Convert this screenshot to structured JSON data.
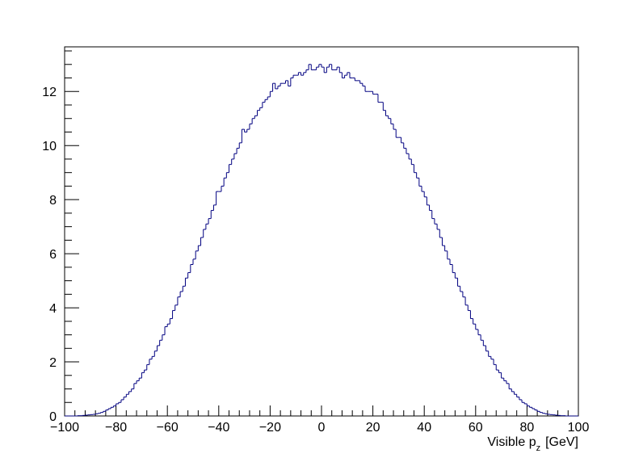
{
  "chart_data": {
    "type": "histogram",
    "xlabel": {
      "main": "Visible p",
      "subscript": "z",
      "suffix": "[GeV]"
    },
    "color": "#000080",
    "bins": [
      -100,
      -99,
      -98,
      -97,
      -96,
      -95,
      -94,
      -93,
      -92,
      -91,
      -90,
      -89,
      -88,
      -87,
      -86,
      -85,
      -84,
      -83,
      -82,
      -81,
      -80,
      -79,
      -78,
      -77,
      -76,
      -75,
      -74,
      -73,
      -72,
      -71,
      -70,
      -69,
      -68,
      -67,
      -66,
      -65,
      -64,
      -63,
      -62,
      -61,
      -60,
      -59,
      -58,
      -57,
      -56,
      -55,
      -54,
      -53,
      -52,
      -51,
      -50,
      -49,
      -48,
      -47,
      -46,
      -45,
      -44,
      -43,
      -42,
      -41,
      -40,
      -39,
      -38,
      -37,
      -36,
      -35,
      -34,
      -33,
      -32,
      -31,
      -30,
      -29,
      -28,
      -27,
      -26,
      -25,
      -24,
      -23,
      -22,
      -21,
      -20,
      -19,
      -18,
      -17,
      -16,
      -15,
      -14,
      -13,
      -12,
      -11,
      -10,
      -9,
      -8,
      -7,
      -6,
      -5,
      -4,
      -3,
      -2,
      -1,
      0,
      1,
      2,
      3,
      4,
      5,
      6,
      7,
      8,
      9,
      10,
      11,
      12,
      13,
      14,
      15,
      16,
      17,
      18,
      19,
      20,
      21,
      22,
      23,
      24,
      25,
      26,
      27,
      28,
      29,
      30,
      31,
      32,
      33,
      34,
      35,
      36,
      37,
      38,
      39,
      40,
      41,
      42,
      43,
      44,
      45,
      46,
      47,
      48,
      49,
      50,
      51,
      52,
      53,
      54,
      55,
      56,
      57,
      58,
      59,
      60,
      61,
      62,
      63,
      64,
      65,
      66,
      67,
      68,
      69,
      70,
      71,
      72,
      73,
      74,
      75,
      76,
      77,
      78,
      79,
      80,
      81,
      82,
      83,
      84,
      85,
      86,
      87,
      88,
      89,
      90,
      91,
      92,
      93,
      94,
      95,
      96,
      97,
      98,
      99,
      100
    ],
    "values": [
      0,
      0,
      0,
      0,
      0,
      0.01,
      0.01,
      0.02,
      0.03,
      0.04,
      0.05,
      0.06,
      0.08,
      0.1,
      0.13,
      0.17,
      0.22,
      0.27,
      0.32,
      0.37,
      0.45,
      0.5,
      0.6,
      0.7,
      0.8,
      0.9,
      1.0,
      1.2,
      1.3,
      1.4,
      1.6,
      1.7,
      1.9,
      2.1,
      2.2,
      2.4,
      2.6,
      2.8,
      3.0,
      3.3,
      3.4,
      3.6,
      3.9,
      4.1,
      4.4,
      4.6,
      4.8,
      5.1,
      5.3,
      5.6,
      5.8,
      6.1,
      6.3,
      6.6,
      6.9,
      7.1,
      7.3,
      7.6,
      7.8,
      8.3,
      8.3,
      8.5,
      8.8,
      9.0,
      9.3,
      9.5,
      9.7,
      9.9,
      10.1,
      10.6,
      10.5,
      10.6,
      10.8,
      11.0,
      11.1,
      11.3,
      11.4,
      11.6,
      11.7,
      11.8,
      12.0,
      12.3,
      12.1,
      12.2,
      12.3,
      12.3,
      12.4,
      12.2,
      12.5,
      12.6,
      12.6,
      12.7,
      12.6,
      12.7,
      12.8,
      13.0,
      12.8,
      12.8,
      12.9,
      13.0,
      12.9,
      12.7,
      12.9,
      13.0,
      12.8,
      12.8,
      12.9,
      12.7,
      12.5,
      12.6,
      12.7,
      12.5,
      12.5,
      12.4,
      12.4,
      12.3,
      12.2,
      12.0,
      12.0,
      12.0,
      11.9,
      11.9,
      11.6,
      11.6,
      11.3,
      11.1,
      11.0,
      10.8,
      10.6,
      10.3,
      10.3,
      10.1,
      9.9,
      9.7,
      9.5,
      9.3,
      9.0,
      8.8,
      8.5,
      8.3,
      8.1,
      7.8,
      7.6,
      7.3,
      7.1,
      6.9,
      6.6,
      6.3,
      6.1,
      5.8,
      5.6,
      5.3,
      5.1,
      4.8,
      4.6,
      4.4,
      4.1,
      3.9,
      3.6,
      3.4,
      3.2,
      3.0,
      2.8,
      2.6,
      2.4,
      2.2,
      2.1,
      1.9,
      1.7,
      1.6,
      1.4,
      1.3,
      1.2,
      1.0,
      0.9,
      0.8,
      0.7,
      0.6,
      0.5,
      0.45,
      0.37,
      0.32,
      0.27,
      0.22,
      0.17,
      0.13,
      0.1,
      0.08,
      0.06,
      0.05,
      0.04,
      0.03,
      0.02,
      0.01,
      0.01,
      0,
      0,
      0,
      0,
      0
    ],
    "xlim": [
      -100,
      100
    ],
    "xticks": [
      {
        "value": -100,
        "label": "−100"
      },
      {
        "value": -80,
        "label": "−80"
      },
      {
        "value": -60,
        "label": "−60"
      },
      {
        "value": -40,
        "label": "−40"
      },
      {
        "value": -20,
        "label": "−20"
      },
      0,
      20,
      40,
      60,
      80,
      100
    ],
    "xminorticks": [
      -96,
      -92,
      -88,
      -84,
      -76,
      -72,
      -68,
      -64,
      -56,
      -52,
      -48,
      -44,
      -36,
      -32,
      -28,
      -24,
      -16,
      -12,
      -8,
      -4,
      4,
      8,
      12,
      16,
      24,
      28,
      32,
      36,
      44,
      48,
      52,
      56,
      64,
      68,
      72,
      76,
      84,
      88,
      92,
      96
    ],
    "ylim": [
      0,
      13.65
    ],
    "yticks": [
      0,
      2,
      4,
      6,
      8,
      10,
      12
    ],
    "yminorticks": [
      0.5,
      1,
      1.5,
      2.5,
      3,
      3.5,
      4.5,
      5,
      5.5,
      6.5,
      7,
      7.5,
      8.5,
      9,
      9.5,
      10.5,
      11,
      11.5,
      12.5,
      13,
      13.5
    ]
  }
}
